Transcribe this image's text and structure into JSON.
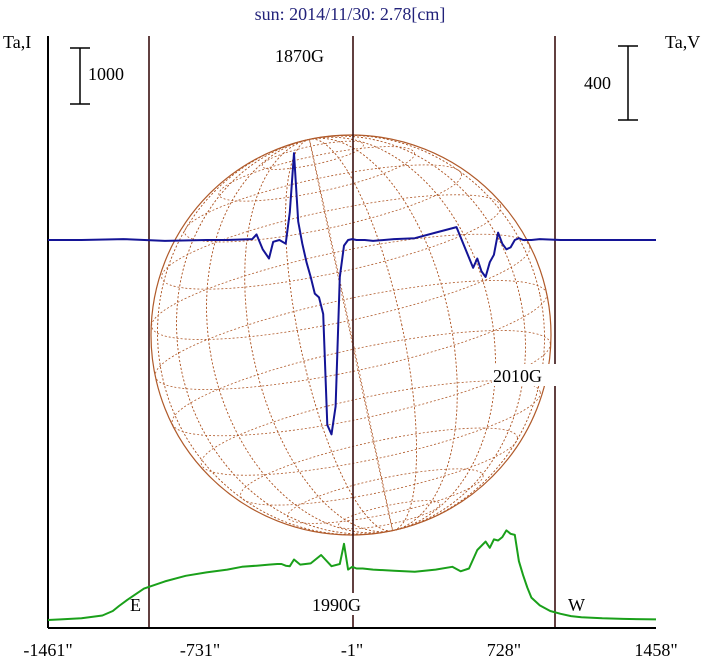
{
  "chart_data": {
    "type": "line",
    "title": "sun: 2014/11/30: 2.78[cm]",
    "left_axis_label": "Ta,I",
    "right_axis_label": "Ta,V",
    "left_scale_bar": "1000",
    "right_scale_bar": "400",
    "x_ticks": [
      "-1461\"",
      "-731\"",
      "-1\"",
      "728\"",
      "1458\""
    ],
    "x_tick_values": [
      -1461,
      -731,
      -1,
      728,
      1458
    ],
    "xlim": [
      -1461,
      1458
    ],
    "limb_labels": {
      "east": "E",
      "west": "W"
    },
    "annotations": [
      "1870G",
      "1990G",
      "2010G"
    ],
    "colors": {
      "title": "#22227a",
      "intensity": "#1aa01a",
      "polarization": "#141496",
      "solar_disk": "#b05a2a",
      "vertical_lines": "#3a1010"
    },
    "series": [
      {
        "name": "Ta,I",
        "color": "#1aa01a",
        "x": [
          -1461,
          -1400,
          -1300,
          -1200,
          -1150,
          -1120,
          -1080,
          -1000,
          -900,
          -800,
          -700,
          -600,
          -530,
          -460,
          -400,
          -360,
          -340,
          -320,
          -300,
          -280,
          -250,
          -200,
          -150,
          -100,
          -60,
          -40,
          -20,
          0,
          20,
          50,
          100,
          200,
          300,
          400,
          480,
          520,
          560,
          600,
          640,
          660,
          680,
          700,
          720,
          740,
          760,
          780,
          800,
          820,
          840,
          860,
          900,
          950,
          1000,
          1050,
          1100,
          1200,
          1300,
          1458
        ],
        "y": [
          0,
          10,
          30,
          80,
          160,
          250,
          360,
          560,
          690,
          790,
          850,
          900,
          950,
          970,
          990,
          1000,
          1000,
          970,
          960,
          1080,
          990,
          1010,
          1160,
          960,
          1000,
          1360,
          900,
          950,
          920,
          920,
          900,
          880,
          860,
          900,
          950,
          870,
          920,
          1250,
          1400,
          1290,
          1440,
          1420,
          1480,
          1600,
          1540,
          1520,
          1050,
          800,
          580,
          400,
          260,
          160,
          110,
          70,
          50,
          30,
          20,
          10
        ]
      },
      {
        "name": "Ta,V",
        "color": "#141496",
        "x": [
          -1461,
          -1300,
          -1100,
          -900,
          -700,
          -600,
          -480,
          -460,
          -430,
          -400,
          -380,
          -350,
          -320,
          -300,
          -280,
          -260,
          -240,
          -220,
          -200,
          -180,
          -160,
          -140,
          -120,
          -100,
          -80,
          -60,
          -40,
          -20,
          0,
          20,
          60,
          100,
          200,
          300,
          400,
          500,
          580,
          600,
          620,
          640,
          660,
          680,
          700,
          720,
          740,
          760,
          780,
          800,
          820,
          860,
          900,
          1000,
          1100,
          1200,
          1300,
          1458
        ],
        "y": [
          0,
          0,
          5,
          -5,
          0,
          0,
          5,
          30,
          -50,
          -100,
          -10,
          0,
          -20,
          150,
          470,
          100,
          -20,
          -120,
          -200,
          -290,
          -310,
          -400,
          -1000,
          -1050,
          -900,
          -200,
          -30,
          0,
          5,
          0,
          0,
          -5,
          5,
          10,
          40,
          70,
          -150,
          -100,
          -170,
          -200,
          -120,
          -80,
          40,
          -20,
          -50,
          -40,
          0,
          10,
          0,
          0,
          5,
          0,
          0,
          0,
          0,
          0
        ]
      }
    ]
  }
}
